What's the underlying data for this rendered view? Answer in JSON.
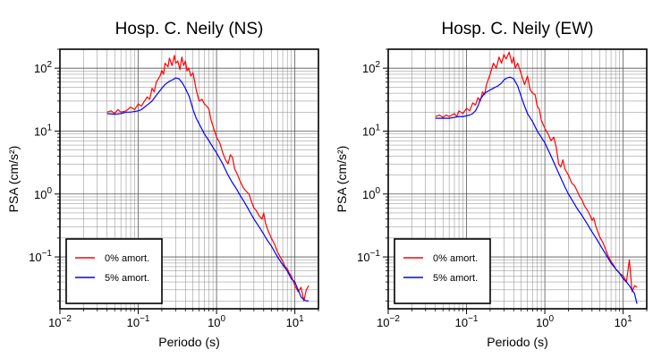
{
  "chart_data": [
    {
      "type": "line",
      "title": "Hosp. C. Neily (NS)",
      "xlabel": "Periodo (s)",
      "ylabel": "PSA (cm/s²)",
      "x_scale": "log",
      "y_scale": "log",
      "xlim": [
        0.01,
        20
      ],
      "ylim": [
        0.015,
        200
      ],
      "xticks": [
        {
          "base": "10",
          "exp": "−2"
        },
        {
          "base": "10",
          "exp": "−1"
        },
        {
          "base": "10",
          "exp": "0"
        },
        {
          "base": "10",
          "exp": "1"
        }
      ],
      "yticks": [
        {
          "base": "10",
          "exp": "−1"
        },
        {
          "base": "10",
          "exp": "0"
        },
        {
          "base": "10",
          "exp": "1"
        },
        {
          "base": "10",
          "exp": "2"
        }
      ],
      "grid": true,
      "legend_position": "bottom-left",
      "series": [
        {
          "name": "0% amort.",
          "color": "#ff0000",
          "points": [
            [
              0.04,
              20
            ],
            [
              0.045,
              21
            ],
            [
              0.05,
              19
            ],
            [
              0.055,
              22
            ],
            [
              0.06,
              20
            ],
            [
              0.07,
              21
            ],
            [
              0.08,
              24
            ],
            [
              0.09,
              22
            ],
            [
              0.1,
              27
            ],
            [
              0.11,
              25
            ],
            [
              0.12,
              30
            ],
            [
              0.13,
              35
            ],
            [
              0.14,
              32
            ],
            [
              0.15,
              48
            ],
            [
              0.16,
              42
            ],
            [
              0.17,
              60
            ],
            [
              0.19,
              75
            ],
            [
              0.2,
              92
            ],
            [
              0.21,
              80
            ],
            [
              0.22,
              120
            ],
            [
              0.24,
              105
            ],
            [
              0.25,
              145
            ],
            [
              0.27,
              110
            ],
            [
              0.29,
              160
            ],
            [
              0.3,
              120
            ],
            [
              0.32,
              130
            ],
            [
              0.34,
              95
            ],
            [
              0.36,
              150
            ],
            [
              0.38,
              110
            ],
            [
              0.4,
              130
            ],
            [
              0.42,
              90
            ],
            [
              0.44,
              100
            ],
            [
              0.47,
              75
            ],
            [
              0.5,
              85
            ],
            [
              0.55,
              45
            ],
            [
              0.6,
              30
            ],
            [
              0.65,
              32
            ],
            [
              0.7,
              27
            ],
            [
              0.75,
              25
            ],
            [
              0.8,
              22
            ],
            [
              0.85,
              15
            ],
            [
              0.9,
              12
            ],
            [
              1,
              8
            ],
            [
              1.1,
              6.5
            ],
            [
              1.2,
              4.5
            ],
            [
              1.3,
              3.5
            ],
            [
              1.4,
              3
            ],
            [
              1.5,
              4.2
            ],
            [
              1.6,
              3.8
            ],
            [
              1.7,
              2.5
            ],
            [
              1.8,
              2.2
            ],
            [
              2,
              1.6
            ],
            [
              2.2,
              1.25
            ],
            [
              2.4,
              1.1
            ],
            [
              2.6,
              1
            ],
            [
              2.8,
              0.75
            ],
            [
              3,
              0.6
            ],
            [
              3.2,
              0.55
            ],
            [
              3.5,
              0.45
            ],
            [
              3.8,
              0.4
            ],
            [
              4,
              0.5
            ],
            [
              4.2,
              0.35
            ],
            [
              4.5,
              0.27
            ],
            [
              5,
              0.2
            ],
            [
              5.5,
              0.16
            ],
            [
              6,
              0.12
            ],
            [
              6.5,
              0.1
            ],
            [
              7,
              0.085
            ],
            [
              7.5,
              0.07
            ],
            [
              8,
              0.065
            ],
            [
              8.5,
              0.055
            ],
            [
              9,
              0.05
            ],
            [
              10,
              0.035
            ],
            [
              11,
              0.028
            ],
            [
              12,
              0.033
            ],
            [
              13,
              0.02
            ],
            [
              14,
              0.03
            ],
            [
              15,
              0.035
            ]
          ]
        },
        {
          "name": "5% amort.",
          "color": "#0000ff",
          "points": [
            [
              0.04,
              19
            ],
            [
              0.05,
              18.5
            ],
            [
              0.06,
              19
            ],
            [
              0.07,
              20
            ],
            [
              0.08,
              20
            ],
            [
              0.09,
              20.5
            ],
            [
              0.1,
              21
            ],
            [
              0.11,
              22
            ],
            [
              0.12,
              24
            ],
            [
              0.13,
              26
            ],
            [
              0.15,
              30
            ],
            [
              0.17,
              37
            ],
            [
              0.2,
              48
            ],
            [
              0.22,
              55
            ],
            [
              0.25,
              62
            ],
            [
              0.28,
              66
            ],
            [
              0.3,
              70
            ],
            [
              0.33,
              68
            ],
            [
              0.36,
              60
            ],
            [
              0.4,
              48
            ],
            [
              0.45,
              35
            ],
            [
              0.5,
              22
            ],
            [
              0.55,
              16
            ],
            [
              0.6,
              13
            ],
            [
              0.7,
              9
            ],
            [
              0.8,
              7
            ],
            [
              0.9,
              5.5
            ],
            [
              1,
              4.5
            ],
            [
              1.2,
              3
            ],
            [
              1.4,
              2
            ],
            [
              1.6,
              1.5
            ],
            [
              1.8,
              1.2
            ],
            [
              2,
              0.95
            ],
            [
              2.3,
              0.72
            ],
            [
              2.6,
              0.55
            ],
            [
              3,
              0.4
            ],
            [
              3.5,
              0.3
            ],
            [
              4,
              0.23
            ],
            [
              4.5,
              0.18
            ],
            [
              5,
              0.15
            ],
            [
              6,
              0.1
            ],
            [
              7,
              0.075
            ],
            [
              8,
              0.06
            ],
            [
              9,
              0.045
            ],
            [
              10,
              0.04
            ],
            [
              11,
              0.03
            ],
            [
              12,
              0.023
            ],
            [
              13,
              0.021
            ],
            [
              14,
              0.02
            ],
            [
              15,
              0.02
            ]
          ]
        }
      ]
    },
    {
      "type": "line",
      "title": "Hosp. C. Neily (EW)",
      "xlabel": "Periodo (s)",
      "ylabel": "PSA (cm/s²)",
      "x_scale": "log",
      "y_scale": "log",
      "xlim": [
        0.01,
        20
      ],
      "ylim": [
        0.015,
        200
      ],
      "xticks": [
        {
          "base": "10",
          "exp": "−2"
        },
        {
          "base": "10",
          "exp": "−1"
        },
        {
          "base": "10",
          "exp": "0"
        },
        {
          "base": "10",
          "exp": "1"
        }
      ],
      "yticks": [
        {
          "base": "10",
          "exp": "−1"
        },
        {
          "base": "10",
          "exp": "0"
        },
        {
          "base": "10",
          "exp": "1"
        },
        {
          "base": "10",
          "exp": "2"
        }
      ],
      "grid": true,
      "legend_position": "bottom-left",
      "series": [
        {
          "name": "0% amort.",
          "color": "#ff0000",
          "points": [
            [
              0.04,
              17
            ],
            [
              0.045,
              18
            ],
            [
              0.05,
              16.5
            ],
            [
              0.055,
              18
            ],
            [
              0.06,
              17
            ],
            [
              0.07,
              19
            ],
            [
              0.075,
              17
            ],
            [
              0.08,
              21
            ],
            [
              0.09,
              19
            ],
            [
              0.1,
              23
            ],
            [
              0.11,
              21
            ],
            [
              0.12,
              28
            ],
            [
              0.13,
              26
            ],
            [
              0.14,
              34
            ],
            [
              0.15,
              30
            ],
            [
              0.16,
              42
            ],
            [
              0.17,
              38
            ],
            [
              0.18,
              55
            ],
            [
              0.2,
              80
            ],
            [
              0.22,
              120
            ],
            [
              0.24,
              100
            ],
            [
              0.26,
              150
            ],
            [
              0.28,
              120
            ],
            [
              0.3,
              165
            ],
            [
              0.32,
              140
            ],
            [
              0.35,
              180
            ],
            [
              0.38,
              120
            ],
            [
              0.4,
              150
            ],
            [
              0.42,
              100
            ],
            [
              0.45,
              120
            ],
            [
              0.5,
              80
            ],
            [
              0.55,
              55
            ],
            [
              0.6,
              75
            ],
            [
              0.65,
              45
            ],
            [
              0.7,
              40
            ],
            [
              0.75,
              38
            ],
            [
              0.8,
              25
            ],
            [
              0.85,
              22
            ],
            [
              0.9,
              15
            ],
            [
              1,
              11
            ],
            [
              1.1,
              9
            ],
            [
              1.2,
              7
            ],
            [
              1.3,
              8
            ],
            [
              1.4,
              5.5
            ],
            [
              1.5,
              3
            ],
            [
              1.6,
              2.7
            ],
            [
              1.7,
              3.5
            ],
            [
              1.8,
              2.5
            ],
            [
              2,
              2
            ],
            [
              2.2,
              1.5
            ],
            [
              2.4,
              1.35
            ],
            [
              2.6,
              1.1
            ],
            [
              2.8,
              0.9
            ],
            [
              3,
              0.8
            ],
            [
              3.2,
              0.65
            ],
            [
              3.5,
              0.55
            ],
            [
              3.8,
              0.45
            ],
            [
              4,
              0.38
            ],
            [
              4.2,
              0.42
            ],
            [
              4.5,
              0.3
            ],
            [
              5,
              0.21
            ],
            [
              5.5,
              0.17
            ],
            [
              6,
              0.13
            ],
            [
              6.5,
              0.1
            ],
            [
              7,
              0.085
            ],
            [
              7.5,
              0.075
            ],
            [
              8,
              0.065
            ],
            [
              9,
              0.055
            ],
            [
              10,
              0.05
            ],
            [
              11,
              0.04
            ],
            [
              12,
              0.09
            ],
            [
              13,
              0.028
            ],
            [
              14,
              0.035
            ],
            [
              15,
              0.033
            ]
          ]
        },
        {
          "name": "5% amort.",
          "color": "#0000ff",
          "points": [
            [
              0.04,
              16
            ],
            [
              0.05,
              16
            ],
            [
              0.06,
              16
            ],
            [
              0.07,
              16.5
            ],
            [
              0.08,
              17
            ],
            [
              0.09,
              17
            ],
            [
              0.1,
              17.5
            ],
            [
              0.11,
              18
            ],
            [
              0.12,
              19
            ],
            [
              0.13,
              21
            ],
            [
              0.14,
              25
            ],
            [
              0.15,
              32
            ],
            [
              0.17,
              40
            ],
            [
              0.2,
              45
            ],
            [
              0.22,
              48
            ],
            [
              0.25,
              52
            ],
            [
              0.28,
              58
            ],
            [
              0.3,
              65
            ],
            [
              0.33,
              70
            ],
            [
              0.36,
              72
            ],
            [
              0.4,
              68
            ],
            [
              0.45,
              52
            ],
            [
              0.5,
              35
            ],
            [
              0.55,
              25
            ],
            [
              0.6,
              19
            ],
            [
              0.7,
              14
            ],
            [
              0.8,
              10
            ],
            [
              0.9,
              8
            ],
            [
              1,
              6.5
            ],
            [
              1.2,
              4
            ],
            [
              1.4,
              2.6
            ],
            [
              1.6,
              1.8
            ],
            [
              1.8,
              1.3
            ],
            [
              2,
              1
            ],
            [
              2.3,
              0.75
            ],
            [
              2.6,
              0.58
            ],
            [
              3,
              0.45
            ],
            [
              3.5,
              0.33
            ],
            [
              4,
              0.25
            ],
            [
              4.5,
              0.2
            ],
            [
              5,
              0.16
            ],
            [
              6,
              0.11
            ],
            [
              7,
              0.08
            ],
            [
              8,
              0.065
            ],
            [
              9,
              0.055
            ],
            [
              10,
              0.045
            ],
            [
              11,
              0.04
            ],
            [
              12,
              0.035
            ],
            [
              13,
              0.03
            ],
            [
              14,
              0.026
            ],
            [
              15,
              0.018
            ]
          ]
        }
      ]
    }
  ]
}
